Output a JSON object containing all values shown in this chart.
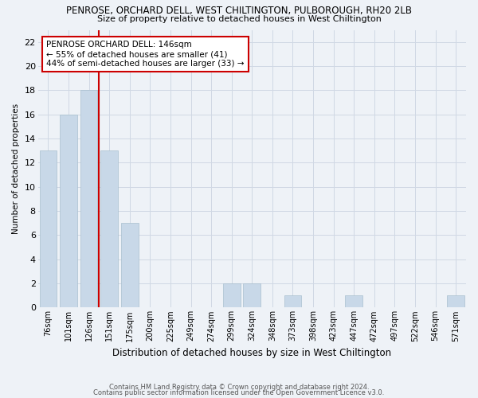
{
  "title1": "PENROSE, ORCHARD DELL, WEST CHILTINGTON, PULBOROUGH, RH20 2LB",
  "title2": "Size of property relative to detached houses in West Chiltington",
  "xlabel": "Distribution of detached houses by size in West Chiltington",
  "ylabel": "Number of detached properties",
  "footer1": "Contains HM Land Registry data © Crown copyright and database right 2024.",
  "footer2": "Contains public sector information licensed under the Open Government Licence v3.0.",
  "categories": [
    "76sqm",
    "101sqm",
    "126sqm",
    "151sqm",
    "175sqm",
    "200sqm",
    "225sqm",
    "249sqm",
    "274sqm",
    "299sqm",
    "324sqm",
    "348sqm",
    "373sqm",
    "398sqm",
    "423sqm",
    "447sqm",
    "472sqm",
    "497sqm",
    "522sqm",
    "546sqm",
    "571sqm"
  ],
  "values": [
    13,
    16,
    18,
    13,
    7,
    0,
    0,
    0,
    0,
    2,
    2,
    0,
    1,
    0,
    0,
    1,
    0,
    0,
    0,
    0,
    1
  ],
  "bar_color": "#c8d8e8",
  "bar_edgecolor": "#a8bfcf",
  "marker_label": "PENROSE ORCHARD DELL: 146sqm",
  "annotation_line1": "← 55% of detached houses are smaller (41)",
  "annotation_line2": "44% of semi-detached houses are larger (33) →",
  "annotation_box_color": "#ffffff",
  "annotation_box_edgecolor": "#cc0000",
  "marker_line_color": "#cc0000",
  "ylim": [
    0,
    23
  ],
  "yticks": [
    0,
    2,
    4,
    6,
    8,
    10,
    12,
    14,
    16,
    18,
    20,
    22
  ],
  "background_color": "#eef2f7",
  "grid_color": "#d0d8e4"
}
